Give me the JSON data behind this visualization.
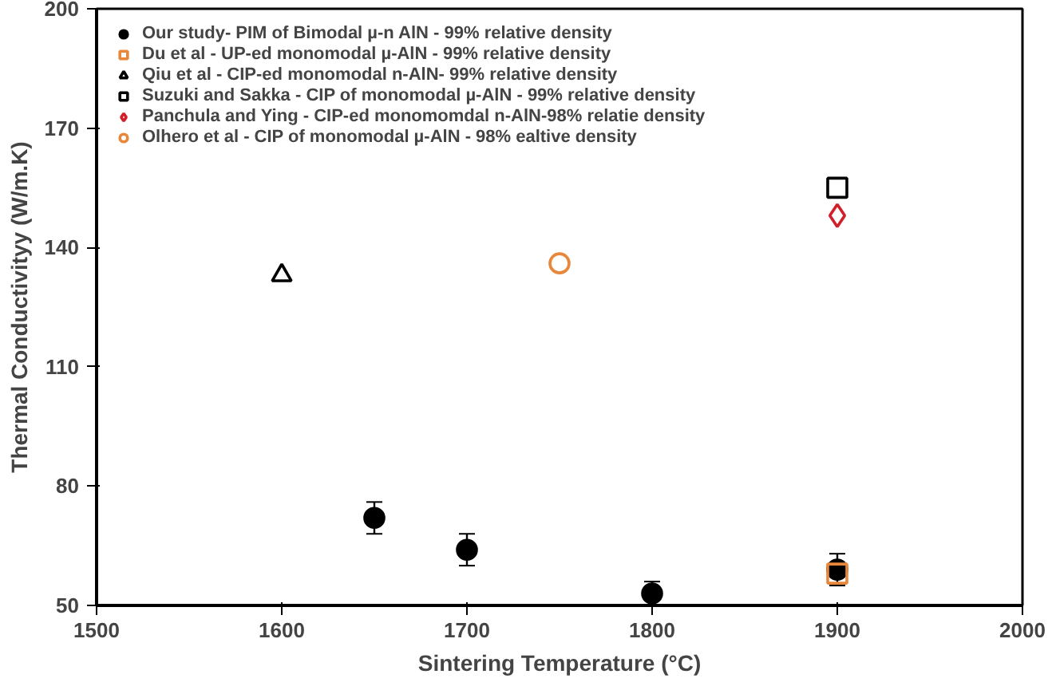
{
  "chart_data": {
    "type": "scatter",
    "xlabel": "Sintering Temperature (°C)",
    "ylabel": "Thermal Conductivityy (W/m.K)",
    "xlim": [
      1500,
      2000
    ],
    "xticks": [
      1500,
      1600,
      1700,
      1800,
      1900,
      2000
    ],
    "ylim": [
      50,
      200
    ],
    "yticks": [
      50,
      80,
      110,
      140,
      170,
      200
    ],
    "grid": false,
    "legend": "top left",
    "series": [
      {
        "name": "Our study- PIM of Bimodal µ-n AlN - 99% relative density",
        "color": "#000000",
        "marker": "circle",
        "x": [
          1650,
          1700,
          1800,
          1900
        ],
        "values": [
          72,
          64,
          53,
          59
        ],
        "errors": [
          4,
          4,
          3,
          4
        ]
      },
      {
        "name": "Du et al - UP-ed monomodal µ-AlN - 99% relative density",
        "color": "#e8873a",
        "marker": "square",
        "x": [
          1900
        ],
        "values": [
          58
        ]
      },
      {
        "name": "Qiu et al - CIP-ed monomodal n-AlN- 99% relative density",
        "color": "#000000",
        "marker": "triangle",
        "x": [
          1600
        ],
        "values": [
          133
        ]
      },
      {
        "name": "Suzuki and Sakka - CIP of monomodal µ-AlN - 99% relative density",
        "color": "#000000",
        "marker": "square",
        "x": [
          1900
        ],
        "values": [
          155
        ]
      },
      {
        "name": "Panchula and Ying - CIP-ed monomomdal n-AlN-98% relatie density",
        "color": "#d0202a",
        "marker": "diamond",
        "x": [
          1900
        ],
        "values": [
          148
        ]
      },
      {
        "name": "Olhero et al - CIP of monomodal µ-AlN - 98% ealtive density",
        "color": "#e8873a",
        "marker": "circle",
        "x": [
          1750
        ],
        "values": [
          136
        ]
      }
    ]
  }
}
